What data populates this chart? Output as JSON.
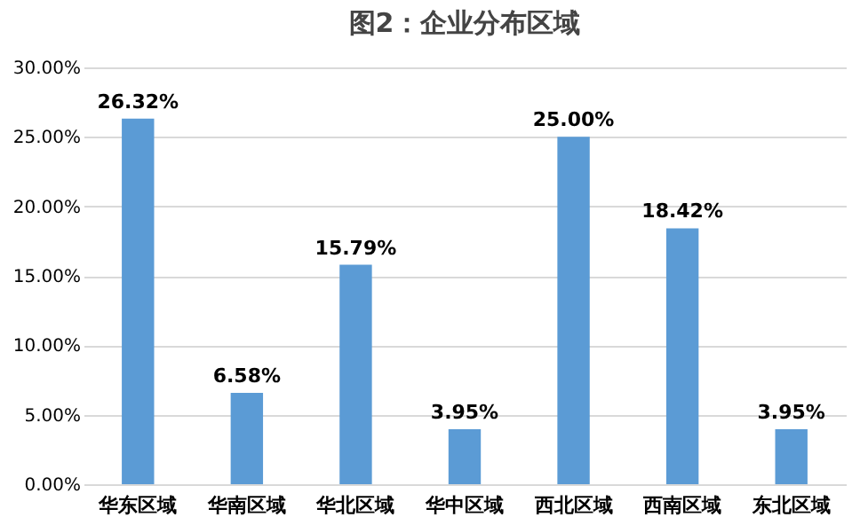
{
  "chart_data": {
    "type": "bar",
    "title": "图2：企业分布区域",
    "categories": [
      "华东区域",
      "华南区域",
      "华北区域",
      "华中区域",
      "西北区域",
      "西南区域",
      "东北区域"
    ],
    "values": [
      26.32,
      6.58,
      15.79,
      3.95,
      25.0,
      18.42,
      3.95
    ],
    "value_labels": [
      "26.32%",
      "6.58%",
      "15.79%",
      "3.95%",
      "25.00%",
      "18.42%",
      "3.95%"
    ],
    "color": "#5b9bd5",
    "ylim": [
      0,
      30
    ],
    "yticks": [
      {
        "value": 0,
        "label": "0.00%"
      },
      {
        "value": 5,
        "label": "5.00%"
      },
      {
        "value": 10,
        "label": "10.00%"
      },
      {
        "value": 15,
        "label": "15.00%"
      },
      {
        "value": 20,
        "label": "20.00%"
      },
      {
        "value": 25,
        "label": "25.00%"
      },
      {
        "value": 30,
        "label": "30.00%"
      }
    ],
    "grid": "y"
  }
}
